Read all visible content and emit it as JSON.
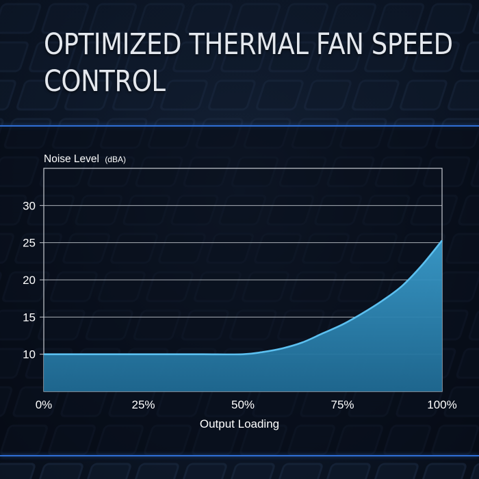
{
  "title_lines": [
    "OPTIMIZED THERMAL FAN SPEED",
    "CONTROL"
  ],
  "colors": {
    "accent": "#2f6fd6",
    "curve": "#4fb3e6",
    "fill": "#2a7ea8",
    "grid": "#c8ccd2",
    "text": "#ffffff"
  },
  "chart_data": {
    "type": "area",
    "ylabel": "Noise Level",
    "ylabel_unit": "(dBA)",
    "xlabel": "Output Loading",
    "x_ticks": [
      "0%",
      "25%",
      "50%",
      "75%",
      "100%"
    ],
    "y_ticks": [
      "10",
      "15",
      "20",
      "25",
      "30"
    ],
    "xlim": [
      0,
      100
    ],
    "ylim": [
      5,
      35
    ],
    "grid": "horizontal",
    "series": [
      {
        "x": [
          0,
          10,
          20,
          30,
          40,
          50,
          55,
          60,
          65,
          70,
          75,
          80,
          85,
          90,
          95,
          100
        ],
        "values": [
          10,
          10,
          10,
          10,
          10,
          10,
          10.3,
          10.8,
          11.6,
          12.8,
          14.0,
          15.5,
          17.2,
          19.2,
          22.0,
          25.3
        ]
      }
    ]
  }
}
